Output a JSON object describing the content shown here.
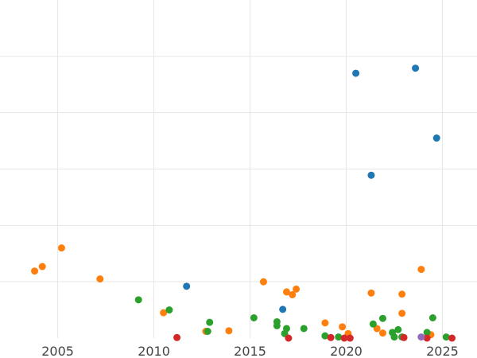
{
  "chart_data": {
    "type": "scatter",
    "title": "",
    "xlabel": "",
    "ylabel": "",
    "xlim": [
      2002.0,
      2026.8
    ],
    "ylim": [
      0,
      6.0
    ],
    "x_ticks": [
      2005,
      2010,
      2015,
      2020,
      2025
    ],
    "x_tick_labels": [
      "2005",
      "2010",
      "2015",
      "2020",
      "2025"
    ],
    "y_gridlines": [
      1,
      2,
      3,
      4,
      5
    ],
    "grid": true,
    "legend": "none",
    "series": [
      {
        "color": "#1f77b4",
        "points": [
          {
            "x": 2020.5,
            "y": 4.7
          },
          {
            "x": 2023.6,
            "y": 4.79
          },
          {
            "x": 2024.7,
            "y": 3.55
          },
          {
            "x": 2021.3,
            "y": 2.89
          },
          {
            "x": 2011.7,
            "y": 0.92
          },
          {
            "x": 2016.7,
            "y": 0.51
          }
        ]
      },
      {
        "color": "#ff7f0e",
        "points": [
          {
            "x": 2003.8,
            "y": 1.19
          },
          {
            "x": 2004.2,
            "y": 1.27
          },
          {
            "x": 2005.2,
            "y": 1.6
          },
          {
            "x": 2007.2,
            "y": 1.05
          },
          {
            "x": 2010.5,
            "y": 0.45
          },
          {
            "x": 2012.7,
            "y": 0.12
          },
          {
            "x": 2013.9,
            "y": 0.13
          },
          {
            "x": 2015.7,
            "y": 1.0
          },
          {
            "x": 2016.9,
            "y": 0.82
          },
          {
            "x": 2017.2,
            "y": 0.77
          },
          {
            "x": 2017.4,
            "y": 0.87
          },
          {
            "x": 2018.9,
            "y": 0.27
          },
          {
            "x": 2019.8,
            "y": 0.2
          },
          {
            "x": 2020.1,
            "y": 0.08
          },
          {
            "x": 2021.3,
            "y": 0.8
          },
          {
            "x": 2021.6,
            "y": 0.17
          },
          {
            "x": 2021.9,
            "y": 0.09
          },
          {
            "x": 2022.9,
            "y": 0.78
          },
          {
            "x": 2022.9,
            "y": 0.44
          },
          {
            "x": 2023.9,
            "y": 1.22
          },
          {
            "x": 2024.4,
            "y": 0.06
          }
        ]
      },
      {
        "color": "#2ca02c",
        "points": [
          {
            "x": 2009.2,
            "y": 0.68
          },
          {
            "x": 2010.8,
            "y": 0.5
          },
          {
            "x": 2012.8,
            "y": 0.12
          },
          {
            "x": 2012.9,
            "y": 0.28
          },
          {
            "x": 2015.2,
            "y": 0.36
          },
          {
            "x": 2016.4,
            "y": 0.29
          },
          {
            "x": 2016.4,
            "y": 0.22
          },
          {
            "x": 2016.8,
            "y": 0.08
          },
          {
            "x": 2016.9,
            "y": 0.17
          },
          {
            "x": 2017.8,
            "y": 0.17
          },
          {
            "x": 2018.9,
            "y": 0.04
          },
          {
            "x": 2019.6,
            "y": 0.02
          },
          {
            "x": 2021.4,
            "y": 0.25
          },
          {
            "x": 2021.9,
            "y": 0.35
          },
          {
            "x": 2022.4,
            "y": 0.1
          },
          {
            "x": 2022.5,
            "y": 0.02
          },
          {
            "x": 2022.7,
            "y": 0.15
          },
          {
            "x": 2022.9,
            "y": 0.02
          },
          {
            "x": 2024.2,
            "y": 0.1
          },
          {
            "x": 2024.5,
            "y": 0.36
          },
          {
            "x": 2025.2,
            "y": 0.02
          }
        ]
      },
      {
        "color": "#d62728",
        "points": [
          {
            "x": 2011.2,
            "y": 0.01
          },
          {
            "x": 2017.0,
            "y": 0.0
          },
          {
            "x": 2019.2,
            "y": 0.01
          },
          {
            "x": 2019.9,
            "y": 0.0
          },
          {
            "x": 2020.2,
            "y": 0.0
          },
          {
            "x": 2023.0,
            "y": 0.01
          },
          {
            "x": 2024.2,
            "y": 0.0
          },
          {
            "x": 2025.5,
            "y": 0.0
          }
        ]
      },
      {
        "color": "#9467bd",
        "points": [
          {
            "x": 2023.9,
            "y": 0.02
          }
        ]
      }
    ]
  }
}
